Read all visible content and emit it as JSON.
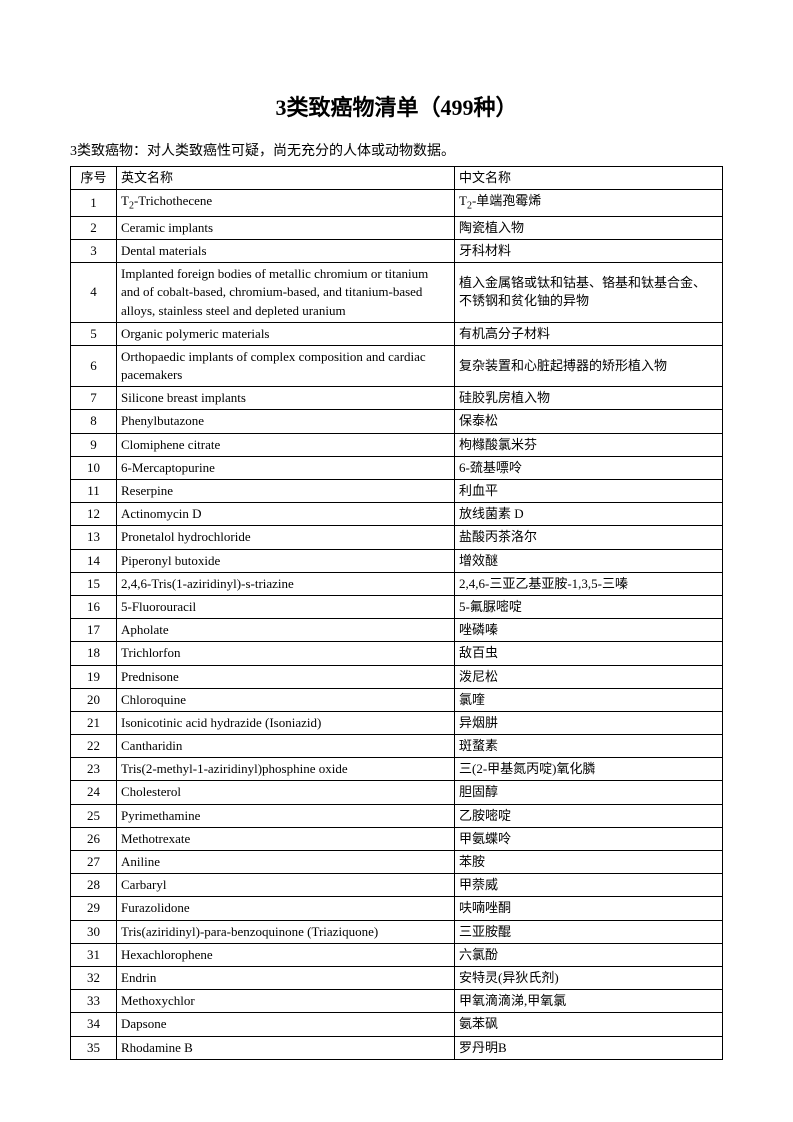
{
  "title": "3类致癌物清单（499种）",
  "subtitle": "3类致癌物：对人类致癌性可疑，尚无充分的人体或动物数据。",
  "headers": {
    "seq": "序号",
    "en": "英文名称",
    "cn": "中文名称"
  },
  "rows": [
    {
      "seq": "1",
      "en": "T₂-Trichothecene",
      "cn": "T₂-单端孢霉烯"
    },
    {
      "seq": "2",
      "en": "Ceramic implants",
      "cn": "陶瓷植入物"
    },
    {
      "seq": "3",
      "en": "Dental materials",
      "cn": "牙科材料"
    },
    {
      "seq": "4",
      "en": "Implanted foreign bodies of metallic chromium or titanium and of cobalt-based, chromium-based, and titanium-based alloys, stainless steel and depleted uranium",
      "cn": "植入金属铬或钛和钴基、铬基和钛基合金、不锈钢和贫化铀的异物"
    },
    {
      "seq": "5",
      "en": "Organic polymeric materials",
      "cn": "有机高分子材料"
    },
    {
      "seq": "6",
      "en": "Orthopaedic implants of complex composition and cardiac pacemakers",
      "cn": "复杂装置和心脏起搏器的矫形植入物"
    },
    {
      "seq": "7",
      "en": "Silicone breast implants",
      "cn": "硅胶乳房植入物"
    },
    {
      "seq": "8",
      "en": "Phenylbutazone",
      "cn": "保泰松"
    },
    {
      "seq": "9",
      "en": "Clomiphene citrate",
      "cn": "枸橼酸氯米芬"
    },
    {
      "seq": "10",
      "en": "6-Mercaptopurine",
      "cn": "6-巯基嘌呤"
    },
    {
      "seq": "11",
      "en": "Reserpine",
      "cn": "利血平"
    },
    {
      "seq": "12",
      "en": "Actinomycin D",
      "cn": "放线菌素 D"
    },
    {
      "seq": "13",
      "en": "Pronetalol hydrochloride",
      "cn": "盐酸丙茶洛尔"
    },
    {
      "seq": "14",
      "en": "Piperonyl butoxide",
      "cn": "增效醚"
    },
    {
      "seq": "15",
      "en": "2,4,6-Tris(1-aziridinyl)-s-triazine",
      "cn": "2,4,6-三亚乙基亚胺-1,3,5-三嗪"
    },
    {
      "seq": "16",
      "en": "5-Fluorouracil",
      "cn": "5-氟脲嘧啶"
    },
    {
      "seq": "17",
      "en": "Apholate",
      "cn": "唑磷嗪"
    },
    {
      "seq": "18",
      "en": "Trichlorfon",
      "cn": "敌百虫"
    },
    {
      "seq": "19",
      "en": "Prednisone",
      "cn": " 泼尼松"
    },
    {
      "seq": "20",
      "en": "Chloroquine",
      "cn": "氯喹"
    },
    {
      "seq": "21",
      "en": "Isonicotinic acid hydrazide (Isoniazid)",
      "cn": "异烟肼"
    },
    {
      "seq": "22",
      "en": "Cantharidin",
      "cn": "斑蝥素"
    },
    {
      "seq": "23",
      "en": "Tris(2-methyl-1-aziridinyl)phosphine oxide",
      "cn": "三(2-甲基氮丙啶)氧化膦"
    },
    {
      "seq": "24",
      "en": "Cholesterol",
      "cn": "胆固醇"
    },
    {
      "seq": "25",
      "en": "Pyrimethamine",
      "cn": "乙胺嘧啶"
    },
    {
      "seq": "26",
      "en": "Methotrexate",
      "cn": "甲氨蝶呤"
    },
    {
      "seq": "27",
      "en": "Aniline",
      "cn": "苯胺"
    },
    {
      "seq": "28",
      "en": "Carbaryl",
      "cn": "甲萘威"
    },
    {
      "seq": "29",
      "en": "Furazolidone",
      "cn": "呋喃唑酮"
    },
    {
      "seq": "30",
      "en": "Tris(aziridinyl)-para-benzoquinone (Triaziquone)",
      "cn": "三亚胺醌"
    },
    {
      "seq": "31",
      "en": "Hexachlorophene",
      "cn": "六氯酚"
    },
    {
      "seq": "32",
      "en": "Endrin",
      "cn": "安特灵(异狄氏剂)"
    },
    {
      "seq": "33",
      "en": "Methoxychlor",
      "cn": "甲氧滴滴涕,甲氧氯"
    },
    {
      "seq": "34",
      "en": "Dapsone",
      "cn": "氨苯砜"
    },
    {
      "seq": "35",
      "en": "Rhodamine B",
      "cn": "罗丹明B"
    }
  ]
}
